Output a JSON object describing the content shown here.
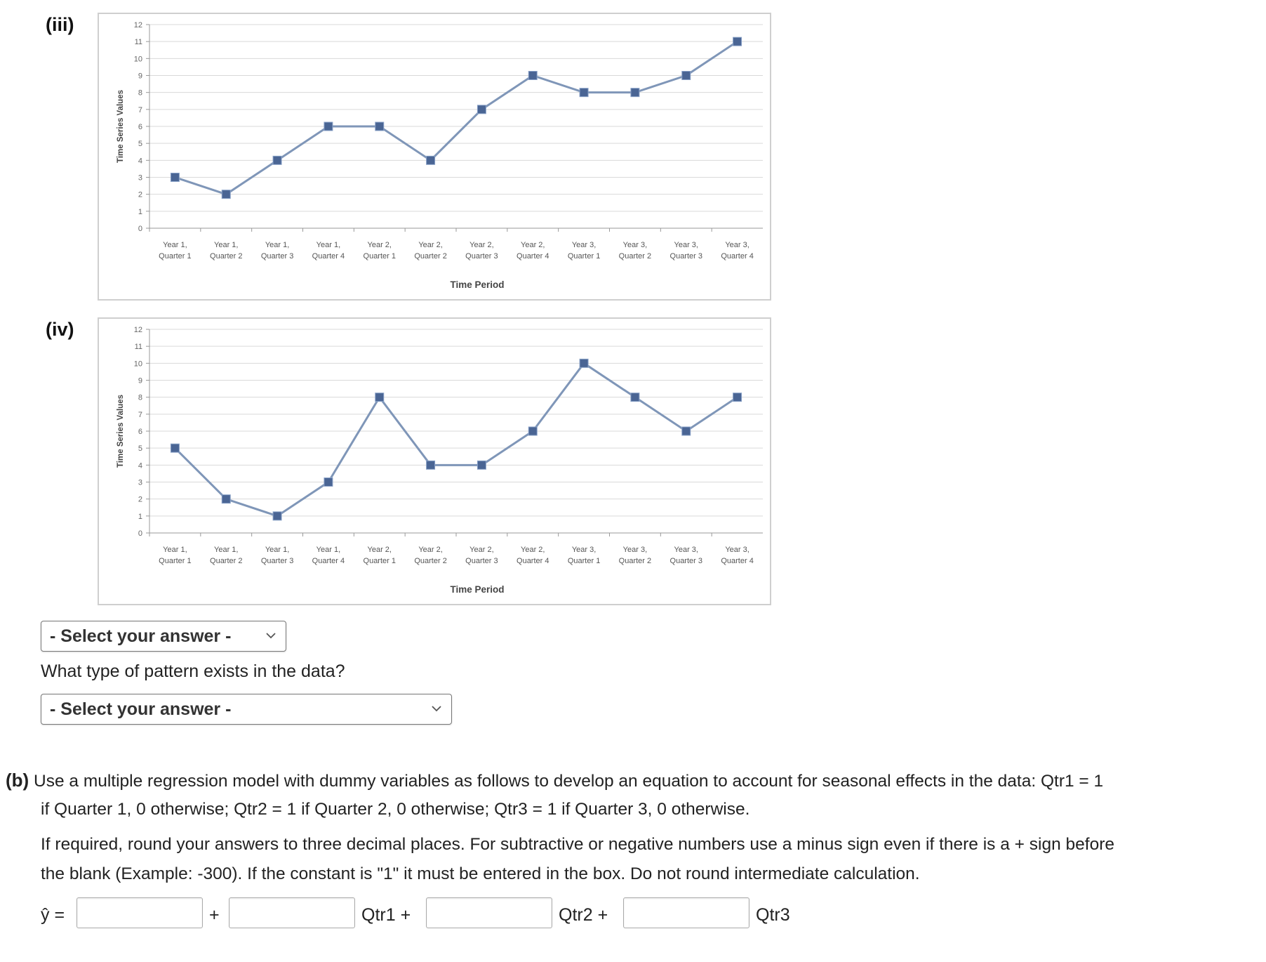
{
  "charts": [
    {
      "label": "(iii)",
      "chart_data": {
        "type": "line",
        "title": "",
        "xlabel": "Time Period",
        "ylabel": "Time Series Values",
        "ylim": [
          0,
          12
        ],
        "yticks": [
          0,
          1,
          2,
          3,
          4,
          5,
          6,
          7,
          8,
          9,
          10,
          11,
          12
        ],
        "grid": true,
        "categories": [
          [
            "Year 1,",
            "Quarter 1"
          ],
          [
            "Year 1,",
            "Quarter 2"
          ],
          [
            "Year 1,",
            "Quarter 3"
          ],
          [
            "Year 1,",
            "Quarter 4"
          ],
          [
            "Year 2,",
            "Quarter 1"
          ],
          [
            "Year 2,",
            "Quarter 2"
          ],
          [
            "Year 2,",
            "Quarter 3"
          ],
          [
            "Year 2,",
            "Quarter 4"
          ],
          [
            "Year 3,",
            "Quarter 1"
          ],
          [
            "Year 3,",
            "Quarter 2"
          ],
          [
            "Year 3,",
            "Quarter 3"
          ],
          [
            "Year 3,",
            "Quarter 4"
          ]
        ],
        "values": [
          3,
          2,
          4,
          6,
          6,
          4,
          7,
          9,
          8,
          8,
          9,
          11
        ],
        "line_color": "#7f96b8",
        "marker_color": "#4a6594"
      }
    },
    {
      "label": "(iv)",
      "chart_data": {
        "type": "line",
        "title": "",
        "xlabel": "Time Period",
        "ylabel": "Time Series Values",
        "ylim": [
          0,
          12
        ],
        "yticks": [
          0,
          1,
          2,
          3,
          4,
          5,
          6,
          7,
          8,
          9,
          10,
          11,
          12
        ],
        "grid": true,
        "categories": [
          [
            "Year 1,",
            "Quarter 1"
          ],
          [
            "Year 1,",
            "Quarter 2"
          ],
          [
            "Year 1,",
            "Quarter 3"
          ],
          [
            "Year 1,",
            "Quarter 4"
          ],
          [
            "Year 2,",
            "Quarter 1"
          ],
          [
            "Year 2,",
            "Quarter 2"
          ],
          [
            "Year 2,",
            "Quarter 3"
          ],
          [
            "Year 2,",
            "Quarter 4"
          ],
          [
            "Year 3,",
            "Quarter 1"
          ],
          [
            "Year 3,",
            "Quarter 2"
          ],
          [
            "Year 3,",
            "Quarter 3"
          ],
          [
            "Year 3,",
            "Quarter 4"
          ]
        ],
        "values": [
          5,
          2,
          1,
          3,
          8,
          4,
          4,
          6,
          10,
          8,
          6,
          8
        ],
        "line_color": "#7f96b8",
        "marker_color": "#4a6594"
      }
    }
  ],
  "select1": {
    "text": "- Select your answer -"
  },
  "question": "What type of pattern exists in the data?",
  "select2": {
    "text": "- Select your answer -"
  },
  "part_b": {
    "label": "(b)",
    "line1": "Use a multiple regression model with dummy variables as follows to develop an equation to account for seasonal effects in the data: Qtr1 = 1",
    "line2": "if Quarter 1, 0 otherwise; Qtr2 = 1 if Quarter 2, 0 otherwise; Qtr3 = 1 if Quarter 3, 0 otherwise.",
    "instr1": "If required, round your answers to three decimal places. For subtractive or negative numbers use a minus sign even if there is a + sign before",
    "instr2": "the blank (Example: -300). If the constant is \"1\" it must be entered in the box. Do not round intermediate calculation."
  },
  "equation": {
    "yhat": "ŷ =",
    "plus": "+",
    "qtr1": "Qtr1 +",
    "qtr2": "Qtr2 +",
    "qtr3": "Qtr3",
    "inputs": [
      "",
      "",
      "",
      ""
    ]
  }
}
